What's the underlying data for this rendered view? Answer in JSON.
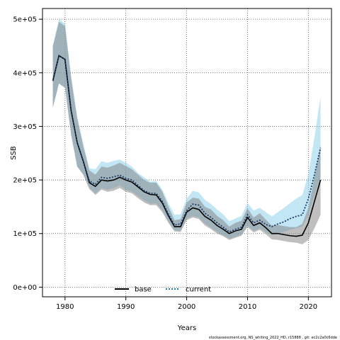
{
  "chart_data": {
    "type": "area",
    "xlabel": "Years",
    "ylabel": "SSB",
    "xlim": [
      1976.3,
      2023.8
    ],
    "ylim": [
      -18000,
      520000
    ],
    "x_ticks": [
      1980,
      1990,
      2000,
      2010,
      2020
    ],
    "y_ticks": [
      0,
      100000,
      200000,
      300000,
      400000,
      500000
    ],
    "y_tick_labels": [
      "0e+00",
      "1e+05",
      "2e+05",
      "3e+05",
      "4e+05",
      "5e+05"
    ],
    "grid": true,
    "legend_position": "bottom",
    "legend": [
      {
        "label": "base",
        "style": "solid",
        "color": "#000000"
      },
      {
        "label": "current",
        "style": "dotted",
        "color": "#1f77b4"
      }
    ],
    "footer": "stockassessment.org, NS_whiting_2022_HD, r15888 , git: ec2c2a0c6dde",
    "x": [
      1978,
      1979,
      1980,
      1981,
      1982,
      1983,
      1984,
      1985,
      1986,
      1987,
      1988,
      1989,
      1990,
      1991,
      1992,
      1993,
      1994,
      1995,
      1996,
      1997,
      1998,
      1999,
      2000,
      2001,
      2002,
      2003,
      2004,
      2005,
      2006,
      2007,
      2008,
      2009,
      2010,
      2011,
      2012,
      2013,
      2014,
      2015,
      2016,
      2017,
      2018,
      2019,
      2020,
      2021,
      2022
    ],
    "series": [
      {
        "name": "base",
        "color": "#000000",
        "band_color": "#808080",
        "values": [
          385000,
          432000,
          425000,
          330000,
          270000,
          235000,
          195000,
          188000,
          200000,
          198000,
          200000,
          205000,
          200000,
          196000,
          187000,
          178000,
          173000,
          172000,
          157000,
          133000,
          113000,
          113000,
          140000,
          148000,
          145000,
          132000,
          125000,
          115000,
          108000,
          100000,
          105000,
          108000,
          130000,
          115000,
          120000,
          111000,
          100000,
          100000,
          98000,
          96000,
          95000,
          97000,
          120000,
          160000,
          200000
        ],
        "lower": [
          335000,
          380000,
          372000,
          285000,
          225000,
          210000,
          183000,
          172000,
          182000,
          178000,
          180000,
          185000,
          178000,
          175000,
          166000,
          158000,
          153000,
          153000,
          140000,
          120000,
          104000,
          103000,
          125000,
          130000,
          127000,
          115000,
          108000,
          100000,
          95000,
          88000,
          92000,
          96000,
          112000,
          102000,
          107000,
          99000,
          89000,
          88000,
          86000,
          84000,
          83000,
          80000,
          88000,
          110000,
          135000
        ],
        "upper": [
          450000,
          495000,
          487000,
          390000,
          315000,
          263000,
          218000,
          210000,
          225000,
          223000,
          227000,
          232000,
          226000,
          220000,
          210000,
          200000,
          195000,
          195000,
          178000,
          150000,
          125000,
          127000,
          158000,
          167000,
          165000,
          150000,
          145000,
          133000,
          125000,
          113000,
          120000,
          124000,
          147000,
          130000,
          138000,
          126000,
          115000,
          116000,
          114000,
          112000,
          112000,
          118000,
          148000,
          205000,
          265000
        ]
      },
      {
        "name": "current",
        "color": "#1f3a6e",
        "band_color": "#87ceeb",
        "values": [
          385000,
          432000,
          425000,
          330000,
          270000,
          235000,
          198000,
          192000,
          205000,
          203000,
          206000,
          209000,
          203000,
          200000,
          190000,
          180000,
          175000,
          175000,
          160000,
          136000,
          116000,
          118000,
          143000,
          155000,
          153000,
          138000,
          130000,
          120000,
          112000,
          103000,
          108000,
          112000,
          135000,
          120000,
          125000,
          117000,
          113000,
          118000,
          122000,
          128000,
          132000,
          135000,
          165000,
          210000,
          260000
        ],
        "lower": [
          335000,
          380000,
          372000,
          285000,
          225000,
          210000,
          185000,
          175000,
          185000,
          182000,
          185000,
          190000,
          182000,
          178000,
          170000,
          162000,
          156000,
          156000,
          143000,
          122000,
          106000,
          105000,
          128000,
          133000,
          130000,
          118000,
          111000,
          103000,
          97000,
          90000,
          94000,
          98000,
          115000,
          105000,
          110000,
          103000,
          97000,
          100000,
          103000,
          107000,
          110000,
          113000,
          135000,
          170000,
          205000
        ],
        "upper": [
          450000,
          500000,
          492000,
          395000,
          318000,
          268000,
          222000,
          220000,
          235000,
          232000,
          236000,
          238000,
          232000,
          225000,
          213000,
          205000,
          197000,
          198000,
          182000,
          157000,
          135000,
          136000,
          165000,
          180000,
          177000,
          163000,
          155000,
          145000,
          136000,
          123000,
          128000,
          133000,
          157000,
          143000,
          148000,
          140000,
          132000,
          140000,
          148000,
          157000,
          165000,
          172000,
          210000,
          280000,
          355000
        ]
      }
    ]
  }
}
